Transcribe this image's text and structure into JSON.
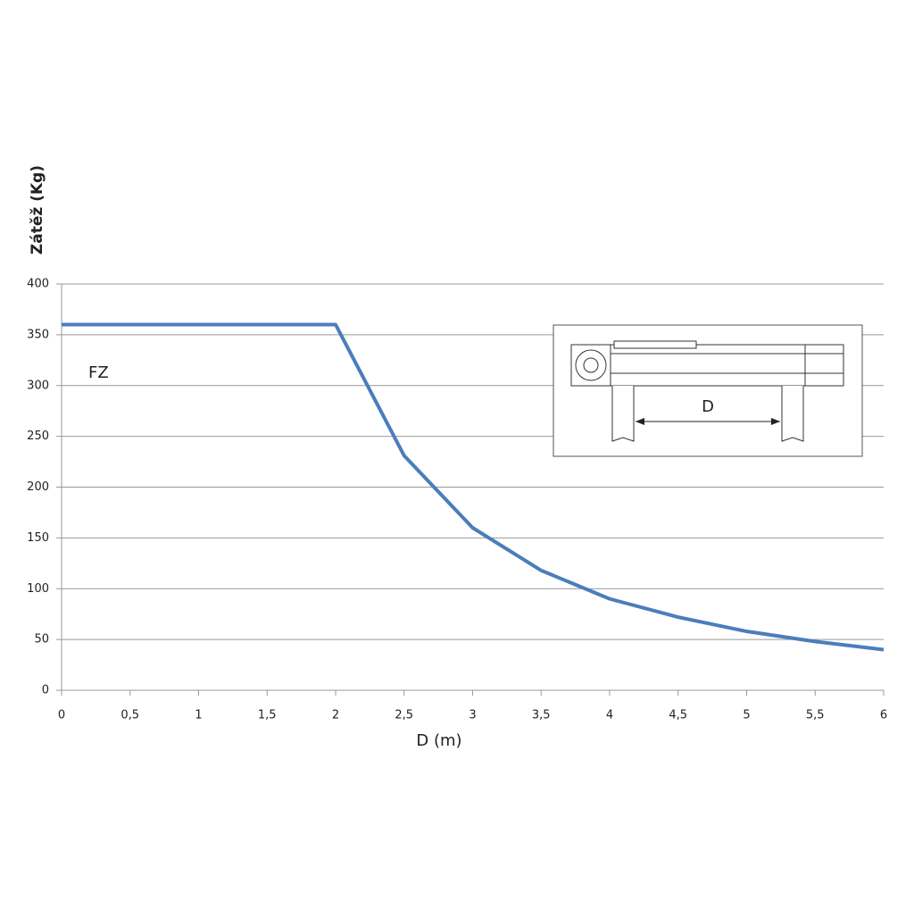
{
  "chart_data": {
    "type": "line",
    "y_label": "Zátěž (Kg)",
    "x_label": "D (m)",
    "annotation": "FZ",
    "inset_label": "D",
    "x": [
      0,
      0.5,
      1,
      1.5,
      2,
      2.5,
      3,
      3.5,
      4,
      4.5,
      5,
      5.5,
      6
    ],
    "series": [
      {
        "name": "FZ",
        "color": "#4a7ebb",
        "values": [
          360,
          360,
          360,
          360,
          360,
          231,
          160,
          118,
          90,
          72,
          58,
          48,
          40
        ]
      }
    ],
    "xlim": [
      0,
      6
    ],
    "xticks": [
      0,
      {
        "value": 0.5,
        "label": "0,5"
      },
      1,
      {
        "value": 1.5,
        "label": "1,5"
      },
      2,
      {
        "value": 2.5,
        "label": "2,5"
      },
      3,
      {
        "value": 3.5,
        "label": "3,5"
      },
      4,
      {
        "value": 4.5,
        "label": "4,5"
      },
      5,
      {
        "value": 5.5,
        "label": "5,5"
      },
      6
    ],
    "ylim": [
      0,
      400
    ],
    "yticks": [
      0,
      50,
      100,
      150,
      200,
      250,
      300,
      350,
      400
    ],
    "grid": true
  }
}
